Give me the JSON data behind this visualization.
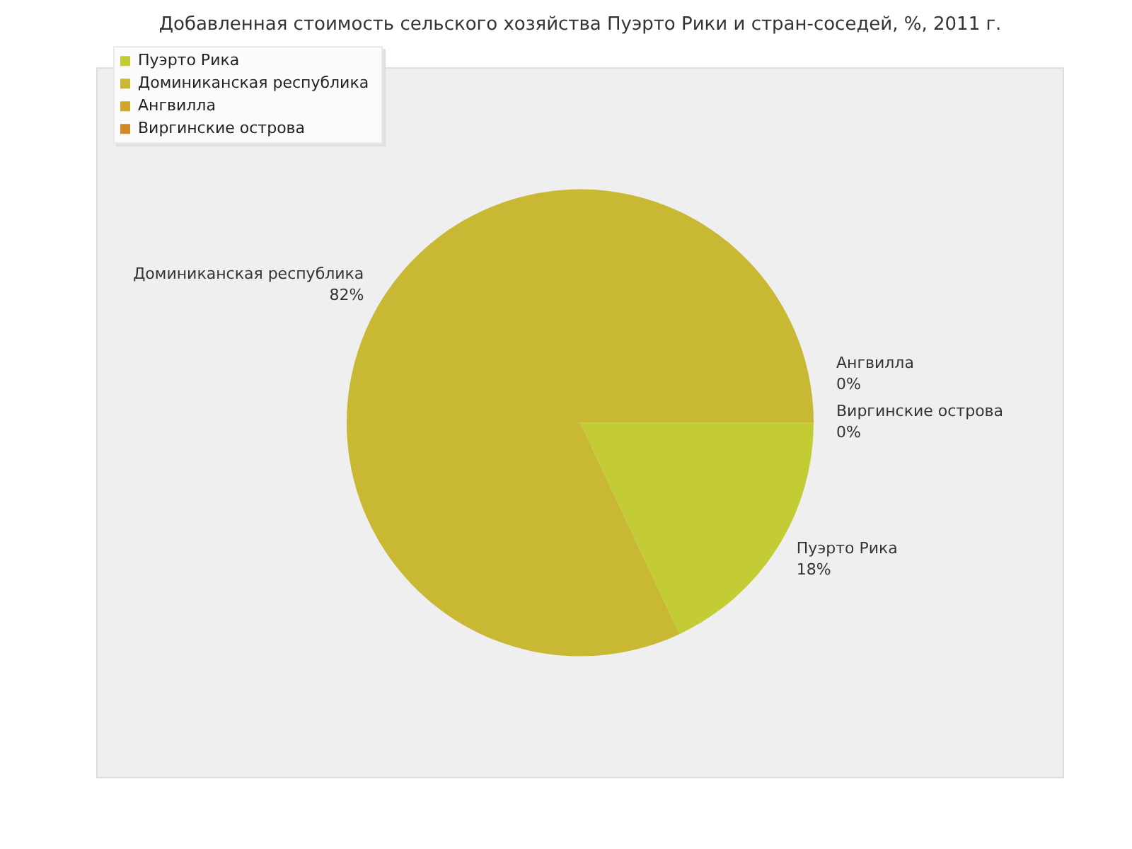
{
  "chart_data": {
    "type": "pie",
    "title": "Добавленная стоимость сельского хозяйства Пуэрто Рики и стран-соседей, %, 2011 г.",
    "categories": [
      "Пуэрто Рика",
      "Доминиканская республика",
      "Ангвилла",
      "Виргинские острова"
    ],
    "values": [
      18,
      82,
      0,
      0
    ],
    "colors": [
      "#c3cb35",
      "#c8b833",
      "#d1a62f",
      "#d2892a"
    ],
    "value_labels": [
      "18%",
      "82%",
      "0%",
      "0%"
    ],
    "legend": "top left"
  }
}
